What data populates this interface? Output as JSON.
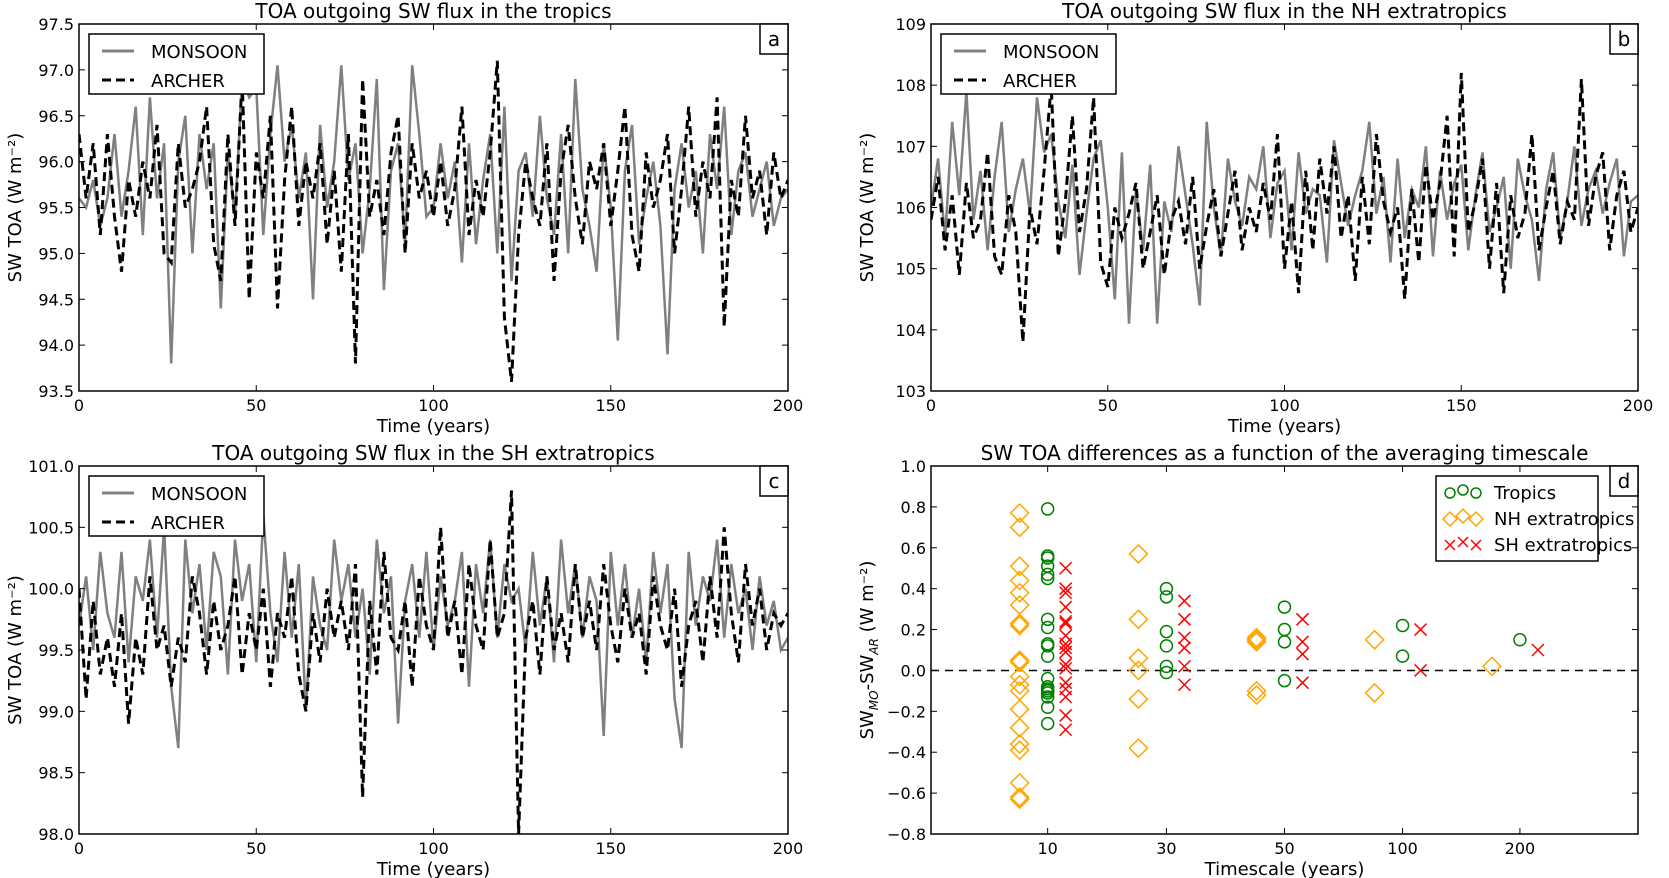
{
  "chart_data": [
    {
      "panel": "a",
      "type": "line",
      "title": "TOA outgoing SW flux in the tropics",
      "xlabel": "Time (years)",
      "ylabel": "SW TOA (W m⁻²)",
      "xlim": [
        0,
        200
      ],
      "ylim": [
        93.5,
        97.5
      ],
      "xticks": [
        "0",
        "50",
        "100",
        "150",
        "200"
      ],
      "yticks": [
        "93.5",
        "94.0",
        "94.5",
        "95.0",
        "95.5",
        "96.0",
        "96.5",
        "97.0",
        "97.5"
      ],
      "legend": "top-left",
      "x_step": 2,
      "series": [
        {
          "name": "MONSOON",
          "style": "solid",
          "color": "#808080",
          "values": [
            95.6,
            95.5,
            95.8,
            95.3,
            95.6,
            96.3,
            95.4,
            95.9,
            96.6,
            95.2,
            96.7,
            95.6,
            96.2,
            93.8,
            96.0,
            96.5,
            95.0,
            96.3,
            95.7,
            96.2,
            94.4,
            96.1,
            95.4,
            96.9,
            96.7,
            96.8,
            95.2,
            96.3,
            97.05,
            96.0,
            96.4,
            95.6,
            96.1,
            94.5,
            96.4,
            95.5,
            96.0,
            97.05,
            95.8,
            96.2,
            95.0,
            95.7,
            96.9,
            94.6,
            95.9,
            96.2,
            95.1,
            97.05,
            96.3,
            95.4,
            95.5,
            96.2,
            95.6,
            96.0,
            94.9,
            96.2,
            95.1,
            95.8,
            96.3,
            95.0,
            96.6,
            94.7,
            95.9,
            96.1,
            95.4,
            96.5,
            95.6,
            95.2,
            96.3,
            95.0,
            96.9,
            95.7,
            95.3,
            94.8,
            96.2,
            95.5,
            94.05,
            95.9,
            96.4,
            95.1,
            95.6,
            96.0,
            95.3,
            93.9,
            95.7,
            96.2,
            95.5,
            95.9,
            95.0,
            96.3,
            95.7,
            96.6,
            95.2,
            95.9,
            96.1,
            95.4,
            95.7,
            96.0,
            95.3,
            95.6,
            95.7
          ]
        },
        {
          "name": "ARCHER",
          "style": "dashed",
          "color": "#000000",
          "values": [
            96.3,
            95.6,
            96.2,
            95.2,
            96.3,
            95.4,
            94.8,
            95.8,
            95.4,
            96.0,
            95.6,
            96.4,
            95.0,
            94.9,
            96.2,
            95.5,
            95.7,
            96.0,
            96.6,
            95.1,
            94.7,
            96.3,
            95.3,
            96.9,
            94.5,
            96.1,
            95.6,
            96.5,
            94.4,
            95.8,
            96.6,
            95.3,
            96.0,
            95.6,
            96.2,
            95.1,
            95.9,
            94.8,
            96.3,
            93.8,
            96.9,
            95.4,
            95.8,
            95.2,
            96.1,
            96.5,
            95.0,
            96.2,
            95.6,
            95.9,
            95.4,
            96.0,
            95.3,
            95.7,
            96.6,
            95.2,
            95.8,
            95.4,
            96.1,
            97.1,
            94.3,
            93.6,
            95.2,
            96.0,
            95.6,
            95.3,
            96.2,
            94.7,
            95.9,
            96.4,
            95.6,
            95.1,
            96.0,
            95.7,
            96.2,
            95.3,
            95.9,
            96.6,
            95.2,
            94.8,
            96.1,
            95.5,
            95.8,
            96.3,
            95.0,
            95.7,
            96.6,
            95.4,
            96.0,
            95.6,
            96.7,
            94.2,
            95.8,
            95.4,
            96.5,
            95.6,
            95.9,
            95.2,
            96.1,
            95.6,
            95.8
          ]
        }
      ]
    },
    {
      "panel": "b",
      "type": "line",
      "title": "TOA outgoing SW flux in the NH extratropics",
      "xlabel": "Time (years)",
      "ylabel": "SW TOA (W m⁻²)",
      "xlim": [
        0,
        200
      ],
      "ylim": [
        103,
        109
      ],
      "xticks": [
        "0",
        "50",
        "100",
        "150",
        "200"
      ],
      "yticks": [
        "103",
        "104",
        "105",
        "106",
        "107",
        "108",
        "109"
      ],
      "legend": "top-left",
      "x_step": 2,
      "series": [
        {
          "name": "MONSOON",
          "style": "solid",
          "color": "#808080",
          "values": [
            106.0,
            106.8,
            105.5,
            107.4,
            106.2,
            107.9,
            105.8,
            106.6,
            105.3,
            106.5,
            107.4,
            105.6,
            106.3,
            106.8,
            105.9,
            107.8,
            106.9,
            107.2,
            106.1,
            105.5,
            106.7,
            104.9,
            105.9,
            106.8,
            107.1,
            106.0,
            104.5,
            106.9,
            104.1,
            106.3,
            105.3,
            106.7,
            104.1,
            106.1,
            105.6,
            107.0,
            106.2,
            105.4,
            104.4,
            107.4,
            106.0,
            105.2,
            106.8,
            106.1,
            105.7,
            106.5,
            106.3,
            107.0,
            105.5,
            106.4,
            106.6,
            105.3,
            106.9,
            105.9,
            106.3,
            106.2,
            105.1,
            107.1,
            106.4,
            105.7,
            106.2,
            106.6,
            107.4,
            105.9,
            106.5,
            105.1,
            106.8,
            105.5,
            106.3,
            106.0,
            107.0,
            105.2,
            106.6,
            105.8,
            106.4,
            106.7,
            105.3,
            106.2,
            106.9,
            105.6,
            106.0,
            106.5,
            105.0,
            106.8,
            106.2,
            105.8,
            104.8,
            106.3,
            106.9,
            105.5,
            106.1,
            107.0,
            105.7,
            106.3,
            106.6,
            105.9,
            106.4,
            106.8,
            105.2,
            106.1,
            106.2
          ]
        },
        {
          "name": "ARCHER",
          "style": "dashed",
          "color": "#000000",
          "values": [
            105.8,
            106.5,
            105.3,
            106.2,
            104.9,
            106.4,
            105.5,
            105.8,
            106.9,
            105.2,
            104.9,
            106.2,
            105.6,
            103.8,
            106.0,
            105.4,
            106.6,
            108.0,
            105.2,
            106.1,
            107.5,
            105.6,
            106.3,
            107.8,
            105.1,
            104.7,
            106.0,
            105.5,
            105.9,
            106.4,
            105.0,
            105.6,
            106.2,
            104.9,
            105.8,
            106.1,
            105.4,
            106.5,
            105.0,
            105.7,
            106.3,
            105.2,
            105.9,
            106.6,
            105.3,
            106.0,
            105.6,
            106.4,
            105.8,
            107.2,
            105.0,
            106.1,
            104.6,
            106.6,
            105.3,
            106.8,
            105.9,
            107.0,
            105.5,
            106.2,
            104.8,
            106.5,
            105.4,
            107.2,
            106.1,
            105.6,
            106.0,
            104.5,
            106.3,
            105.1,
            106.7,
            105.8,
            106.4,
            107.5,
            105.2,
            108.2,
            105.6,
            106.1,
            106.8,
            105.0,
            106.4,
            104.6,
            106.2,
            105.5,
            105.9,
            107.2,
            105.3,
            106.0,
            106.6,
            105.4,
            106.1,
            105.8,
            108.1,
            105.7,
            106.5,
            106.9,
            105.3,
            106.2,
            106.6,
            105.6,
            106.0
          ]
        }
      ]
    },
    {
      "panel": "c",
      "type": "line",
      "title": "TOA outgoing SW flux in the SH extratropics",
      "xlabel": "Time (years)",
      "ylabel": "SW TOA (W m⁻²)",
      "xlim": [
        0,
        200
      ],
      "ylim": [
        98.0,
        101.0
      ],
      "xticks": [
        "0",
        "50",
        "100",
        "150",
        "200"
      ],
      "yticks": [
        "98.0",
        "98.5",
        "99.0",
        "99.5",
        "100.0",
        "100.5",
        "101.0"
      ],
      "legend": "top-left",
      "x_step": 2,
      "series": [
        {
          "name": "MONSOON",
          "style": "solid",
          "color": "#808080",
          "values": [
            99.7,
            100.1,
            99.5,
            100.3,
            99.8,
            99.6,
            100.3,
            99.4,
            100.1,
            99.9,
            100.4,
            99.6,
            100.5,
            99.2,
            98.7,
            100.4,
            99.8,
            100.2,
            99.5,
            100.3,
            100.1,
            99.3,
            100.4,
            99.9,
            100.2,
            99.4,
            100.6,
            99.8,
            99.4,
            100.3,
            99.6,
            100.2,
            99.0,
            100.1,
            99.7,
            99.5,
            100.4,
            99.9,
            100.2,
            99.6,
            100.0,
            99.3,
            100.4,
            99.8,
            100.1,
            98.9,
            99.9,
            100.2,
            99.6,
            100.3,
            99.5,
            100.1,
            99.7,
            99.9,
            100.3,
            99.2,
            100.2,
            99.8,
            100.4,
            99.6,
            100.2,
            99.9,
            100.0,
            99.5,
            100.3,
            99.7,
            100.1,
            99.4,
            100.4,
            99.8,
            100.2,
            99.6,
            100.1,
            99.9,
            98.8,
            100.3,
            99.7,
            100.2,
            99.6,
            100.0,
            99.4,
            100.3,
            99.8,
            100.2,
            99.1,
            98.7,
            100.3,
            99.7,
            100.1,
            99.9,
            100.4,
            99.6,
            100.2,
            99.8,
            100.0,
            99.5,
            100.1,
            99.7,
            99.9,
            99.5,
            99.6
          ]
        },
        {
          "name": "ARCHER",
          "style": "dashed",
          "color": "#000000",
          "values": [
            100.0,
            99.1,
            99.9,
            99.3,
            99.6,
            99.2,
            99.8,
            98.9,
            99.6,
            99.3,
            100.1,
            99.5,
            99.7,
            99.2,
            99.6,
            99.4,
            100.1,
            99.8,
            99.3,
            99.9,
            99.5,
            99.7,
            100.1,
            99.3,
            99.8,
            99.5,
            100.0,
            99.2,
            99.8,
            99.6,
            100.1,
            99.3,
            99.0,
            99.8,
            99.4,
            100.0,
            99.6,
            99.9,
            99.5,
            100.2,
            98.3,
            99.9,
            99.3,
            100.3,
            99.6,
            99.5,
            99.9,
            99.2,
            100.1,
            99.7,
            99.5,
            100.5,
            99.6,
            99.9,
            99.3,
            100.2,
            99.7,
            99.5,
            100.4,
            99.6,
            99.8,
            100.8,
            98.0,
            99.6,
            99.9,
            99.3,
            100.1,
            99.5,
            99.8,
            99.4,
            100.2,
            99.6,
            99.9,
            99.5,
            100.2,
            99.7,
            99.4,
            100.0,
            99.6,
            99.8,
            99.3,
            100.1,
            99.7,
            99.5,
            100.0,
            99.2,
            99.7,
            99.9,
            99.4,
            100.1,
            99.6,
            100.5,
            99.8,
            99.4,
            100.2,
            99.7,
            100.0,
            99.5,
            99.8,
            99.7,
            99.8
          ]
        }
      ]
    },
    {
      "panel": "d",
      "type": "scatter",
      "title": "SW TOA differences as a function of the averaging timescale",
      "xlabel": "Timescale (years)",
      "ylabel": "SW_MO-SW_AR (W m⁻²)",
      "ylim": [
        -0.8,
        1.0
      ],
      "xticks": [
        "10",
        "30",
        "50",
        "100",
        "200"
      ],
      "yticks": [
        "−0.8",
        "−0.6",
        "−0.4",
        "−0.2",
        "0.0",
        "0.2",
        "0.4",
        "0.6",
        "0.8",
        "1.0"
      ],
      "reference_line": 0.0,
      "legend": "top-right",
      "series": [
        {
          "name": "Tropics",
          "marker": "circle",
          "color": "#008000",
          "points": [
            {
              "x": "10",
              "y": [
                0.79,
                0.56,
                0.55,
                0.51,
                0.47,
                0.45,
                0.25,
                0.21,
                0.13,
                0.12,
                0.07,
                -0.04,
                -0.08,
                -0.09,
                -0.1,
                -0.11,
                -0.13,
                -0.18,
                -0.26
              ]
            },
            {
              "x": "30",
              "y": [
                0.4,
                0.36,
                0.19,
                0.12,
                0.02,
                -0.01
              ]
            },
            {
              "x": "50",
              "y": [
                0.31,
                0.2,
                0.14,
                -0.05
              ]
            },
            {
              "x": "100",
              "y": [
                0.22,
                0.07
              ]
            },
            {
              "x": "200",
              "y": [
                0.15
              ]
            }
          ]
        },
        {
          "name": "NH extratropics",
          "marker": "diamond",
          "color": "#FFA500",
          "points": [
            {
              "x": "10",
              "y": [
                0.77,
                0.7,
                0.51,
                0.44,
                0.38,
                0.32,
                0.23,
                0.22,
                0.05,
                0.04,
                -0.03,
                -0.07,
                -0.1,
                -0.19,
                -0.28,
                -0.36,
                -0.39,
                -0.55,
                -0.62,
                -0.63
              ]
            },
            {
              "x": "30",
              "y": [
                0.57,
                0.25,
                0.06,
                0.0,
                -0.14,
                -0.38
              ]
            },
            {
              "x": "50",
              "y": [
                0.16,
                0.15,
                0.14,
                -0.1,
                -0.12
              ]
            },
            {
              "x": "100",
              "y": [
                0.15,
                -0.11
              ]
            },
            {
              "x": "200",
              "y": [
                0.02
              ]
            }
          ]
        },
        {
          "name": "SH extratropics",
          "marker": "x",
          "color": "#FF0000",
          "points": [
            {
              "x": "10",
              "y": [
                0.5,
                0.4,
                0.38,
                0.31,
                0.24,
                0.23,
                0.17,
                0.13,
                0.11,
                0.09,
                0.03,
                0.01,
                -0.06,
                -0.09,
                -0.13,
                -0.22,
                -0.29
              ]
            },
            {
              "x": "30",
              "y": [
                0.34,
                0.25,
                0.16,
                0.11,
                0.02,
                -0.07
              ]
            },
            {
              "x": "50",
              "y": [
                0.25,
                0.14,
                0.08,
                -0.06
              ]
            },
            {
              "x": "100",
              "y": [
                0.2,
                0.0
              ]
            },
            {
              "x": "200",
              "y": [
                0.1
              ]
            }
          ]
        }
      ]
    }
  ],
  "panel_labels": [
    "a",
    "b",
    "c",
    "d"
  ]
}
